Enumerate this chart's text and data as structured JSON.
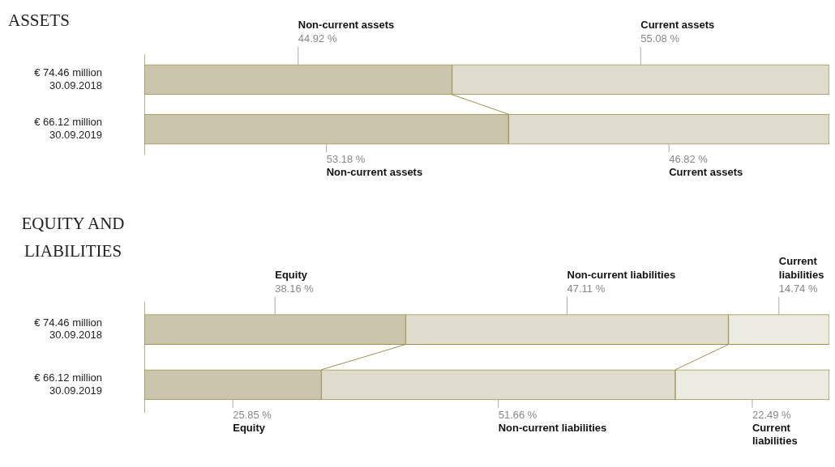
{
  "chart_data": [
    {
      "type": "bar",
      "title": "ASSETS",
      "orientation": "horizontal",
      "stacked": true,
      "xlim": [
        0,
        100
      ],
      "tick_labels": "y",
      "categories": [
        "€ 74.46 million\n30.09.2018",
        "€ 66.12 million\n30.09.2019"
      ],
      "series": [
        {
          "name": "Non-current assets",
          "color": "#cbc5ad",
          "values": [
            44.92,
            53.18
          ],
          "value_labels": [
            "44.92 %",
            "53.18 %"
          ]
        },
        {
          "name": "Current assets",
          "color": "#dfdccd",
          "values": [
            55.08,
            46.82
          ],
          "value_labels": [
            "55.08 %",
            "46.82 %"
          ]
        }
      ]
    },
    {
      "type": "bar",
      "title": "EQUITY AND LIABILITIES",
      "orientation": "horizontal",
      "stacked": true,
      "xlim": [
        0,
        100
      ],
      "tick_labels": "y",
      "categories": [
        "€ 74.46 million\n30.09.2018",
        "€ 66.12 million\n30.09.2019"
      ],
      "series": [
        {
          "name": "Equity",
          "color": "#cbc5ad",
          "values": [
            38.16,
            25.85
          ],
          "value_labels": [
            "38.16 %",
            "25.85 %"
          ]
        },
        {
          "name": "Non-current liabilities",
          "color": "#dfdccd",
          "values": [
            47.11,
            51.66
          ],
          "value_labels": [
            "47.11 %",
            "51.66 %"
          ]
        },
        {
          "name": "Current liabilities",
          "color": "#ecebe2",
          "values": [
            14.74,
            22.49
          ],
          "value_labels": [
            "14.74 %",
            "22.49 %"
          ]
        }
      ]
    }
  ]
}
